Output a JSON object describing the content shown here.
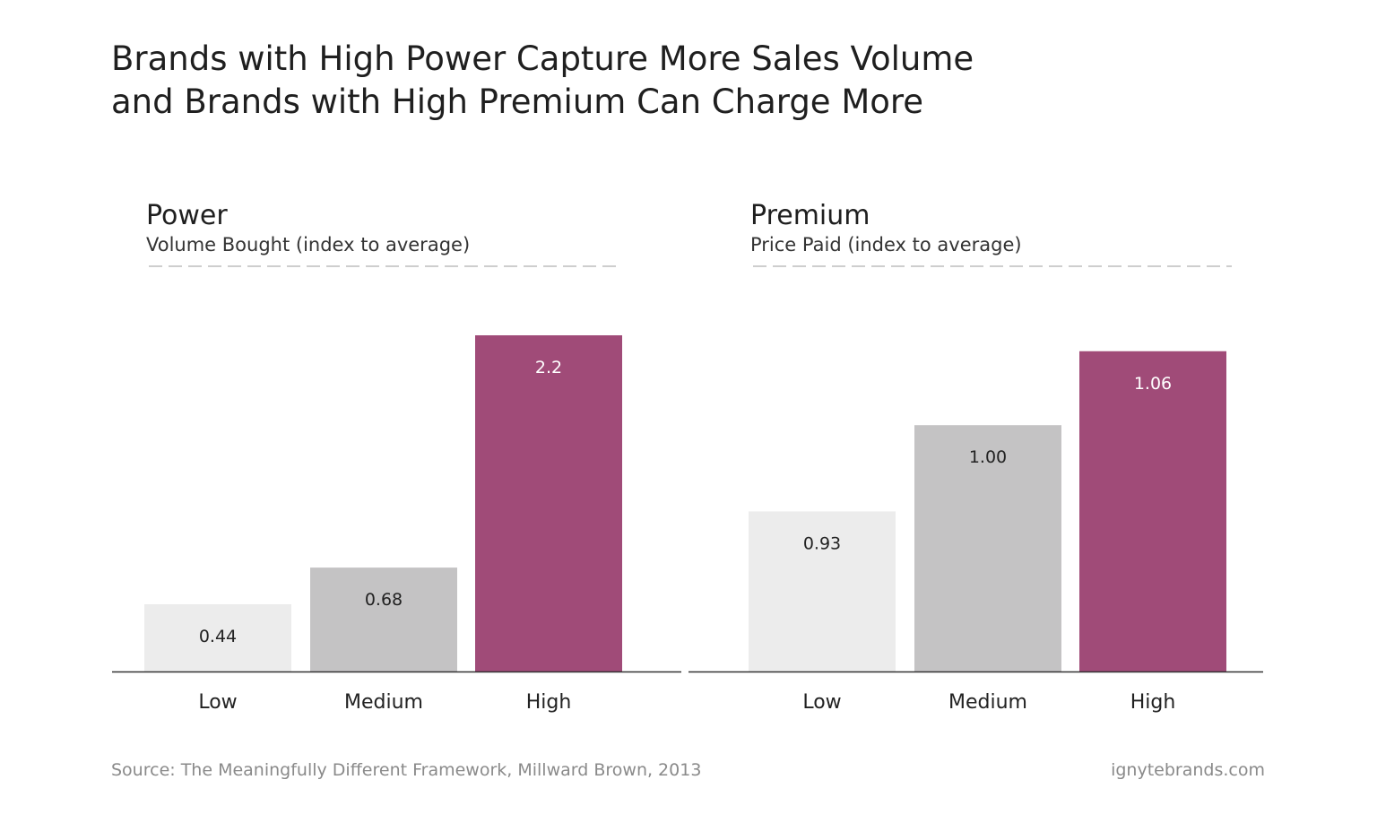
{
  "title": {
    "line1": "Brands with High Power Capture More Sales Volume",
    "line2": "and Brands with High Premium Can Charge More"
  },
  "footer": {
    "source": "Source: The Meaningfully Different Framework, Millward Brown, 2013",
    "site": "ignytebrands.com"
  },
  "colors": {
    "low": "#ececec",
    "medium": "#c4c3c4",
    "high": "#a04b78",
    "axis": "#333333",
    "dash": "#bdbdbd",
    "label_dark": "#222222",
    "label_light": "#ffffff"
  },
  "chart_data": [
    {
      "type": "bar",
      "title": "Power",
      "subtitle": "Volume Bought (index to average)",
      "categories": [
        "Low",
        "Medium",
        "High"
      ],
      "values": [
        0.44,
        0.68,
        2.2
      ],
      "value_labels": [
        "0.44",
        "0.68",
        "2.2"
      ],
      "ylim": [
        0,
        2.5
      ]
    },
    {
      "type": "bar",
      "title": "Premium",
      "subtitle": "Price Paid (index to average)",
      "categories": [
        "Low",
        "Medium",
        "High"
      ],
      "values": [
        0.93,
        1.0,
        1.06
      ],
      "value_labels": [
        "0.93",
        "1.00",
        "1.06"
      ],
      "ylim": [
        0.8,
        1.1
      ]
    }
  ]
}
